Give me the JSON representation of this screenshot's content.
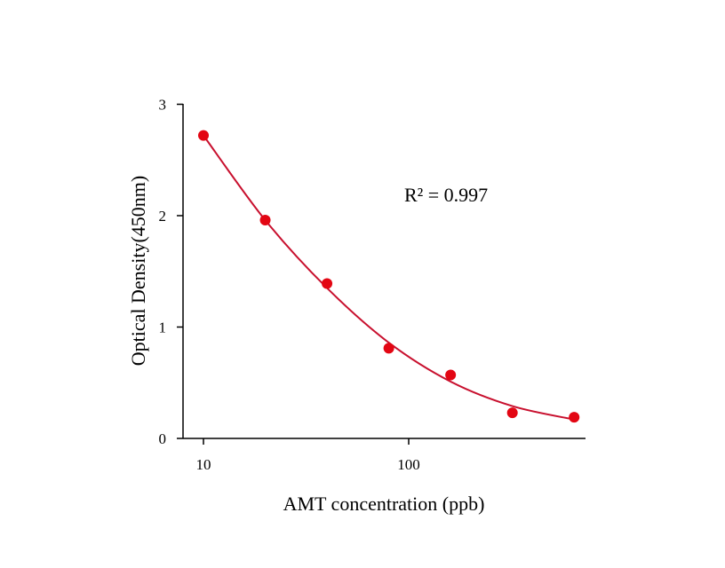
{
  "chart_data": {
    "type": "scatter",
    "xlabel": "AMT concentration (ppb)",
    "ylabel": "Optical Density(450nm)",
    "x_scale": "log",
    "xlim": [
      8,
      720
    ],
    "ylim": [
      0,
      3
    ],
    "x_ticks": [
      {
        "value": 10,
        "label": "10"
      },
      {
        "value": 100,
        "label": "100"
      }
    ],
    "y_ticks": [
      {
        "value": 0,
        "label": "0"
      },
      {
        "value": 1,
        "label": "1"
      },
      {
        "value": 2,
        "label": "2"
      },
      {
        "value": 3,
        "label": "3"
      }
    ],
    "grid": false,
    "series": [
      {
        "x": [
          10,
          20,
          40,
          80,
          160,
          320,
          640
        ],
        "y": [
          2.72,
          1.96,
          1.39,
          0.81,
          0.57,
          0.23,
          0.19
        ]
      }
    ],
    "fit": {
      "x": [
        10,
        20,
        40,
        80,
        160,
        320,
        640
      ],
      "y": [
        2.72,
        1.96,
        1.35,
        0.86,
        0.51,
        0.29,
        0.17
      ]
    },
    "annotation": "R² = 0.997",
    "colors": {
      "points": "#e30613",
      "fit_line": "#c8102e",
      "axes": "#000000"
    }
  }
}
